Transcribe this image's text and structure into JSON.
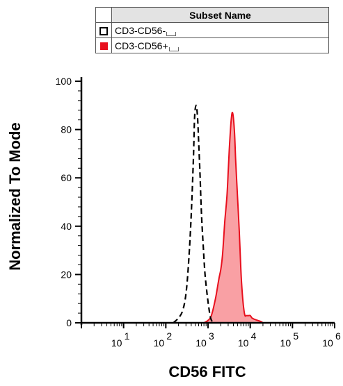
{
  "legend": {
    "header": "Subset Name",
    "rows": [
      {
        "label": "CD3-CD56-",
        "style": "dashed-open",
        "color": "#000000"
      },
      {
        "label": "CD3-CD56+",
        "style": "filled",
        "color": "#e8101e"
      }
    ]
  },
  "chart_data": {
    "type": "area",
    "xlabel": "CD56 FITC",
    "ylabel": "Normalized To Mode",
    "x_scale": "log",
    "xlim": [
      1,
      1000000
    ],
    "ylim": [
      0,
      100
    ],
    "y_ticks": [
      "0",
      "20",
      "40",
      "60",
      "80",
      "100"
    ],
    "x_ticks": [
      {
        "base": "10",
        "exp": "1"
      },
      {
        "base": "10",
        "exp": "2"
      },
      {
        "base": "10",
        "exp": "3"
      },
      {
        "base": "10",
        "exp": "4"
      },
      {
        "base": "10",
        "exp": "5"
      },
      {
        "base": "10",
        "exp": "6"
      }
    ],
    "series": [
      {
        "name": "CD3-CD56-",
        "style": "dashed",
        "color": "#000000",
        "x": [
          150,
          200,
          250,
          300,
          350,
          400,
          450,
          480,
          520,
          560,
          600,
          650,
          700,
          780,
          850,
          950,
          1050,
          1150,
          1300
        ],
        "y": [
          0,
          2,
          5,
          12,
          26,
          45,
          68,
          85,
          90,
          86,
          75,
          60,
          45,
          30,
          20,
          12,
          6,
          2,
          0
        ]
      },
      {
        "name": "CD3-CD56+",
        "style": "filled",
        "color": "#e8101e",
        "fill": "#f9a0a4",
        "x": [
          800,
          1000,
          1200,
          1500,
          1800,
          2000,
          2200,
          2500,
          2800,
          3000,
          3200,
          3500,
          3800,
          4200,
          4500,
          5000,
          5500,
          6000,
          6500,
          7000,
          7500,
          8000,
          9000,
          10000,
          11000,
          12500,
          15000,
          18000,
          20000
        ],
        "y": [
          0,
          1,
          3,
          10,
          18,
          22,
          28,
          42,
          52,
          62,
          72,
          83,
          87,
          80,
          68,
          52,
          38,
          22,
          12,
          6,
          3,
          3,
          3,
          3,
          2,
          1.5,
          1,
          0.5,
          0
        ]
      }
    ]
  }
}
